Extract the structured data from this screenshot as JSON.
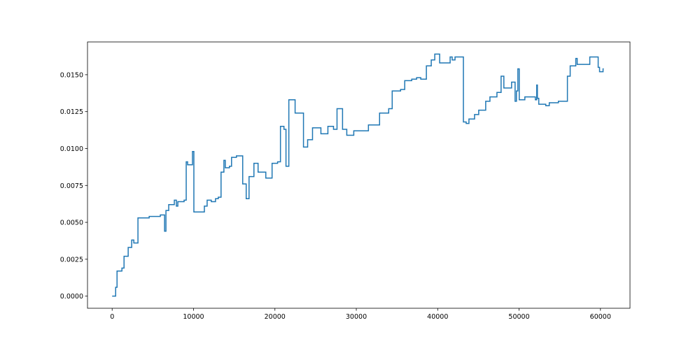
{
  "chart_data": {
    "type": "line",
    "drawstyle": "steps-post",
    "color": "#1f77b4",
    "x": [
      0,
      430,
      600,
      1200,
      1460,
      1970,
      2400,
      2660,
      3170,
      4550,
      5920,
      6440,
      6610,
      6950,
      7640,
      7890,
      8070,
      8840,
      9100,
      9270,
      9870,
      10040,
      11330,
      11670,
      12180,
      12700,
      13040,
      13380,
      13730,
      13900,
      14410,
      14670,
      15270,
      16040,
      16470,
      16820,
      17420,
      17930,
      18880,
      19650,
      20330,
      20680,
      21110,
      21360,
      21710,
      22480,
      23510,
      24020,
      24620,
      25650,
      26510,
      27200,
      27630,
      28310,
      28830,
      29690,
      31490,
      32860,
      33980,
      34410,
      35440,
      35950,
      36810,
      37410,
      37920,
      38610,
      39210,
      39640,
      40240,
      41530,
      41780,
      42130,
      43160,
      43500,
      43840,
      44530,
      45040,
      45900,
      46420,
      47280,
      47790,
      48130,
      49080,
      49510,
      49680,
      49850,
      50020,
      50710,
      52000,
      52170,
      52250,
      52420,
      53280,
      53710,
      54830,
      55940,
      56280,
      56970,
      57140,
      58690,
      59720,
      59890,
      60320,
      60400
    ],
    "values": [
      0,
      0.0006,
      0.0017,
      0.0019,
      0.0027,
      0.0033,
      0.0038,
      0.0036,
      0.0053,
      0.0054,
      0.0055,
      0.0044,
      0.0058,
      0.0062,
      0.0065,
      0.0061,
      0.0064,
      0.0065,
      0.0091,
      0.0089,
      0.0098,
      0.0057,
      0.0061,
      0.0065,
      0.0064,
      0.0066,
      0.0067,
      0.0084,
      0.0092,
      0.0087,
      0.0088,
      0.0094,
      0.0095,
      0.0076,
      0.0066,
      0.0081,
      0.009,
      0.0084,
      0.008,
      0.009,
      0.0091,
      0.0115,
      0.0113,
      0.0088,
      0.0133,
      0.0124,
      0.0101,
      0.0106,
      0.0114,
      0.011,
      0.0115,
      0.0113,
      0.0127,
      0.0113,
      0.0109,
      0.0112,
      0.0116,
      0.0124,
      0.0127,
      0.0139,
      0.014,
      0.0146,
      0.0147,
      0.0148,
      0.0147,
      0.0156,
      0.016,
      0.0164,
      0.0158,
      0.0162,
      0.016,
      0.0162,
      0.0118,
      0.0117,
      0.012,
      0.0123,
      0.0126,
      0.0132,
      0.0135,
      0.0138,
      0.0149,
      0.0141,
      0.0145,
      0.0132,
      0.0139,
      0.0154,
      0.0133,
      0.0135,
      0.0133,
      0.0143,
      0.0134,
      0.013,
      0.0129,
      0.0131,
      0.0132,
      0.0149,
      0.0156,
      0.0161,
      0.0157,
      0.0162,
      0.0155,
      0.0152,
      0.0154,
      0.0154
    ],
    "xlim": [
      -3030,
      63630
    ],
    "ylim": [
      -0.00082,
      0.01722
    ],
    "xticks": [
      0,
      10000,
      20000,
      30000,
      40000,
      50000,
      60000
    ],
    "yticks": [
      {
        "value": 0,
        "label": "0.0000"
      },
      0.0025,
      {
        "value": 0.005,
        "label": "0.0050"
      },
      0.0075,
      {
        "value": 0.01,
        "label": "0.0100"
      },
      0.0125,
      {
        "value": 0.015,
        "label": "0.0150"
      }
    ]
  }
}
